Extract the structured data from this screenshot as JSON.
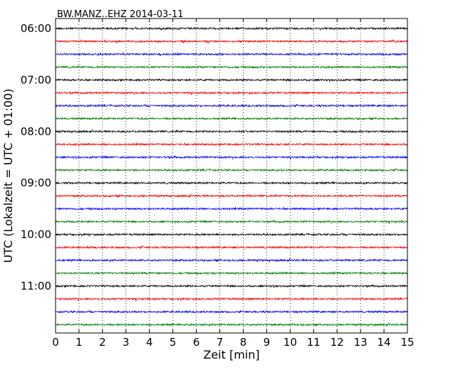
{
  "chart_data": {
    "type": "line",
    "title": "BW.MANZ..EHZ 2014-03-11",
    "xlabel": "Zeit  [min]",
    "ylabel": "UTC (Lokalzeit = UTC + 01:00)",
    "xlim": [
      0,
      15
    ],
    "x_ticks": [
      "0",
      "1",
      "2",
      "3",
      "4",
      "5",
      "6",
      "7",
      "8",
      "9",
      "10",
      "11",
      "12",
      "13",
      "14",
      "15"
    ],
    "y_ticks": [
      "06:00",
      "07:00",
      "08:00",
      "09:00",
      "10:00",
      "11:00"
    ],
    "row_interval_minutes": 15,
    "grid": true,
    "colors": [
      "#000000",
      "#ff0000",
      "#0000ff",
      "#008000"
    ],
    "series": [
      {
        "start": "06:00"
      },
      {
        "start": "06:15"
      },
      {
        "start": "06:30"
      },
      {
        "start": "06:45"
      },
      {
        "start": "07:00"
      },
      {
        "start": "07:15"
      },
      {
        "start": "07:30"
      },
      {
        "start": "07:45"
      },
      {
        "start": "08:00"
      },
      {
        "start": "08:15"
      },
      {
        "start": "08:30"
      },
      {
        "start": "08:45"
      },
      {
        "start": "09:00"
      },
      {
        "start": "09:15"
      },
      {
        "start": "09:30"
      },
      {
        "start": "09:45"
      },
      {
        "start": "10:00"
      },
      {
        "start": "10:15"
      },
      {
        "start": "10:30"
      },
      {
        "start": "10:45"
      },
      {
        "start": "11:00"
      },
      {
        "start": "11:15"
      },
      {
        "start": "11:30"
      },
      {
        "start": "11:45"
      }
    ]
  }
}
